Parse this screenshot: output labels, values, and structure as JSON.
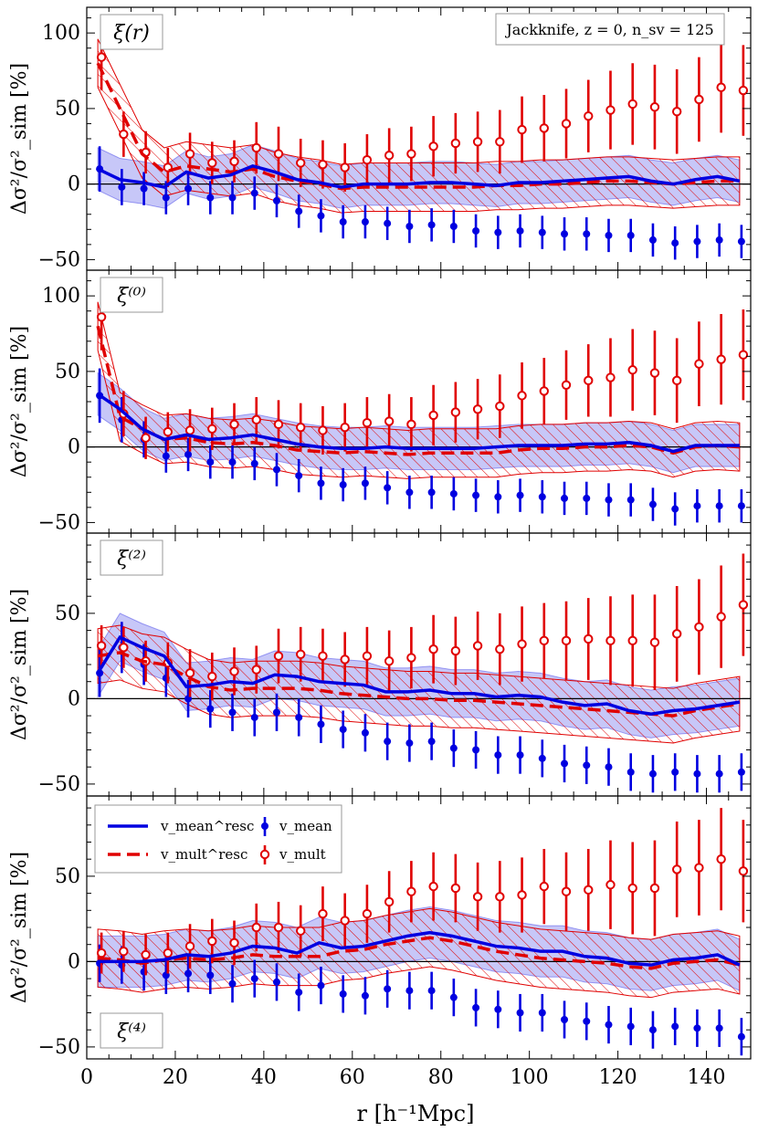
{
  "chart_data": {
    "type": "line",
    "title": "",
    "xlabel": "r [h⁻¹Mpc]",
    "ylabel": "Δσ²/σ²_sim [%]",
    "xlim": [
      0,
      150
    ],
    "x_ticks": [
      0,
      20,
      40,
      60,
      80,
      100,
      120,
      140
    ],
    "annotation": "Jackknife, z = 0, n_sv = 125",
    "legend": {
      "placement": "upper-left of bottom panel",
      "entries": [
        {
          "label": "v_mean^resc",
          "style": "solid-blue-line",
          "color": "#0000e0"
        },
        {
          "label": "v_mult^resc",
          "style": "dashed-red-line",
          "color": "#e00000"
        },
        {
          "label": "v_mean",
          "style": "blue-filled-point-errorbar",
          "color": "#0000e0"
        },
        {
          "label": "v_mult",
          "style": "red-open-point-errorbar",
          "color": "#e00000"
        }
      ]
    },
    "x": [
      2.5,
      7.5,
      12.5,
      17.5,
      22.5,
      27.5,
      32.5,
      37.5,
      42.5,
      47.5,
      52.5,
      57.5,
      62.5,
      67.5,
      72.5,
      77.5,
      82.5,
      87.5,
      92.5,
      97.5,
      102.5,
      107.5,
      112.5,
      117.5,
      122.5,
      127.5,
      132.5,
      137.5,
      142.5,
      147.5
    ],
    "panels": [
      {
        "label": "ξ(r)",
        "label_position": "top",
        "ylim": [
          -57,
          117
        ],
        "y_ticks": [
          -50,
          0,
          50,
          100
        ],
        "v_mean_resc": {
          "values": [
            10,
            3,
            1,
            -2,
            8,
            4,
            6,
            12,
            8,
            3,
            1,
            -2,
            0,
            0,
            0,
            1,
            1,
            0,
            -1,
            1,
            1,
            2,
            3,
            4,
            5,
            2,
            0,
            3,
            5,
            2
          ],
          "band_halfwidth": 14
        },
        "v_mult_resc": {
          "values": [
            80,
            50,
            20,
            8,
            12,
            10,
            8,
            10,
            5,
            2,
            0,
            -3,
            -2,
            -2,
            -2,
            -2,
            -2,
            -2,
            -1,
            -1,
            0,
            0,
            1,
            2,
            2,
            1,
            0,
            1,
            2,
            2
          ],
          "band_halfwidth": 16
        },
        "v_mean": {
          "values": [
            10,
            -2,
            -3,
            -9,
            -3,
            -9,
            -9,
            -6,
            -11,
            -18,
            -21,
            -25,
            -25,
            -26,
            -28,
            -27,
            -28,
            -31,
            -32,
            -31,
            -32,
            -33,
            -33,
            -34,
            -34,
            -37,
            -39,
            -38,
            -37,
            -38
          ],
          "err": [
            15,
            12,
            11,
            11,
            11,
            11,
            11,
            11,
            11,
            11,
            11,
            11,
            11,
            11,
            11,
            11,
            11,
            11,
            11,
            11,
            11,
            11,
            11,
            11,
            11,
            11,
            11,
            11,
            11,
            11
          ]
        },
        "v_mult": {
          "values": [
            84,
            33,
            21,
            11,
            20,
            14,
            15,
            24,
            20,
            14,
            13,
            11,
            16,
            19,
            20,
            25,
            27,
            28,
            28,
            36,
            37,
            40,
            45,
            49,
            53,
            51,
            48,
            56,
            64,
            62
          ],
          "err": [
            22,
            15,
            14,
            13,
            14,
            14,
            14,
            17,
            18,
            16,
            16,
            16,
            17,
            18,
            18,
            20,
            20,
            20,
            21,
            22,
            22,
            23,
            24,
            26,
            27,
            28,
            28,
            28,
            30,
            30
          ]
        }
      },
      {
        "label": "ξ⁽⁰⁾",
        "label_position": "top",
        "ylim": [
          -57,
          117
        ],
        "y_ticks": [
          -50,
          0,
          50,
          100
        ],
        "v_mean_resc": {
          "values": [
            35,
            25,
            12,
            5,
            8,
            5,
            6,
            8,
            5,
            2,
            0,
            -1,
            -1,
            0,
            -1,
            -1,
            -1,
            -1,
            0,
            1,
            1,
            1,
            2,
            2,
            3,
            1,
            -3,
            1,
            1,
            1
          ],
          "band_halfwidth": 14
        },
        "v_mult_resc": {
          "values": [
            80,
            20,
            12,
            5,
            6,
            3,
            2,
            3,
            1,
            -2,
            -3,
            -4,
            -3,
            -4,
            -5,
            -4,
            -4,
            -4,
            -4,
            -2,
            -1,
            -1,
            0,
            0,
            1,
            0,
            -4,
            0,
            1,
            0
          ],
          "band_halfwidth": 16
        },
        "v_mean": {
          "values": [
            34,
            18,
            5,
            -6,
            -5,
            -10,
            -10,
            -11,
            -15,
            -19,
            -24,
            -25,
            -24,
            -27,
            -30,
            -30,
            -31,
            -32,
            -33,
            -32,
            -33,
            -34,
            -34,
            -35,
            -35,
            -38,
            -41,
            -39,
            -39,
            -39
          ],
          "err": [
            18,
            15,
            12,
            11,
            11,
            11,
            11,
            11,
            11,
            11,
            11,
            11,
            11,
            11,
            11,
            11,
            11,
            11,
            11,
            11,
            11,
            11,
            11,
            11,
            11,
            11,
            11,
            11,
            11,
            11
          ]
        },
        "v_mult": {
          "values": [
            86,
            22,
            6,
            10,
            11,
            12,
            15,
            18,
            15,
            13,
            11,
            13,
            16,
            17,
            15,
            21,
            23,
            25,
            27,
            34,
            37,
            41,
            44,
            46,
            51,
            49,
            44,
            55,
            58,
            61
          ],
          "err": [
            22,
            15,
            14,
            13,
            14,
            14,
            14,
            15,
            16,
            16,
            16,
            16,
            17,
            18,
            18,
            20,
            20,
            20,
            21,
            22,
            22,
            23,
            24,
            26,
            27,
            28,
            28,
            28,
            30,
            30
          ]
        }
      },
      {
        "label": "ξ⁽²⁾",
        "label_position": "top",
        "ylim": [
          -57,
          97
        ],
        "y_ticks": [
          -50,
          0,
          50
        ],
        "v_mean_resc": {
          "values": [
            15,
            36,
            30,
            25,
            7,
            8,
            10,
            9,
            14,
            13,
            10,
            9,
            8,
            4,
            4,
            5,
            3,
            3,
            1,
            2,
            1,
            -2,
            -4,
            -3,
            -7,
            -9,
            -7,
            -6,
            -4,
            -2
          ],
          "band_halfwidth": 14
        },
        "v_mult_resc": {
          "values": [
            25,
            27,
            22,
            20,
            13,
            7,
            5,
            6,
            6,
            6,
            5,
            3,
            2,
            1,
            0,
            0,
            -1,
            -1,
            -2,
            -3,
            -4,
            -5,
            -6,
            -7,
            -8,
            -9,
            -10,
            -7,
            -5,
            -3
          ],
          "band_halfwidth": 16
        },
        "v_mean": {
          "values": [
            15,
            30,
            20,
            12,
            0,
            -6,
            -8,
            -11,
            -8,
            -11,
            -15,
            -18,
            -20,
            -25,
            -26,
            -25,
            -29,
            -30,
            -33,
            -33,
            -35,
            -38,
            -39,
            -40,
            -43,
            -44,
            -43,
            -44,
            -44,
            -43
          ],
          "err": [
            14,
            15,
            12,
            11,
            11,
            11,
            11,
            11,
            11,
            11,
            11,
            11,
            11,
            11,
            11,
            11,
            11,
            11,
            11,
            11,
            11,
            11,
            11,
            11,
            11,
            11,
            11,
            11,
            11,
            11
          ]
        },
        "v_mult": {
          "values": [
            31,
            30,
            22,
            21,
            15,
            13,
            16,
            17,
            25,
            26,
            25,
            23,
            25,
            22,
            24,
            29,
            28,
            31,
            29,
            32,
            34,
            34,
            35,
            34,
            34,
            33,
            38,
            42,
            48,
            55
          ],
          "err": [
            12,
            12,
            12,
            12,
            14,
            14,
            14,
            14,
            16,
            16,
            16,
            16,
            17,
            18,
            18,
            20,
            20,
            20,
            21,
            22,
            22,
            23,
            24,
            26,
            27,
            28,
            28,
            28,
            30,
            30
          ]
        }
      },
      {
        "label": "ξ⁽⁴⁾",
        "label_position": "bottom",
        "ylim": [
          -57,
          97
        ],
        "y_ticks": [
          -50,
          0,
          50
        ],
        "v_mean_resc": {
          "values": [
            0,
            0,
            0,
            1,
            4,
            3,
            5,
            9,
            8,
            5,
            11,
            8,
            9,
            12,
            15,
            17,
            15,
            12,
            9,
            8,
            6,
            6,
            3,
            2,
            -1,
            -2,
            1,
            2,
            4,
            -2
          ],
          "band_halfwidth": 15
        },
        "v_mult_resc": {
          "values": [
            2,
            1,
            -1,
            1,
            2,
            1,
            2,
            4,
            3,
            3,
            3,
            6,
            7,
            10,
            12,
            14,
            12,
            9,
            6,
            4,
            2,
            1,
            0,
            -1,
            -3,
            -4,
            -1,
            0,
            1,
            -2
          ],
          "band_halfwidth": 17
        },
        "v_mean": {
          "values": [
            -1,
            -2,
            -6,
            -8,
            -7,
            -8,
            -13,
            -10,
            -12,
            -18,
            -14,
            -19,
            -20,
            -16,
            -17,
            -17,
            -21,
            -27,
            -28,
            -30,
            -30,
            -34,
            -35,
            -37,
            -38,
            -40,
            -38,
            -39,
            -39,
            -44
          ],
          "err": [
            11,
            11,
            11,
            11,
            11,
            11,
            11,
            11,
            11,
            11,
            11,
            11,
            11,
            11,
            11,
            11,
            11,
            11,
            11,
            11,
            11,
            11,
            11,
            11,
            11,
            11,
            11,
            11,
            11,
            11
          ]
        },
        "v_mult": {
          "values": [
            5,
            6,
            4,
            5,
            9,
            12,
            11,
            20,
            20,
            18,
            28,
            24,
            28,
            35,
            41,
            44,
            43,
            38,
            38,
            39,
            44,
            41,
            42,
            45,
            43,
            43,
            54,
            55,
            60,
            53
          ],
          "err": [
            12,
            12,
            12,
            12,
            13,
            13,
            13,
            14,
            15,
            15,
            16,
            16,
            17,
            18,
            18,
            20,
            20,
            20,
            21,
            22,
            22,
            23,
            24,
            26,
            27,
            28,
            28,
            28,
            30,
            30
          ]
        }
      }
    ]
  }
}
